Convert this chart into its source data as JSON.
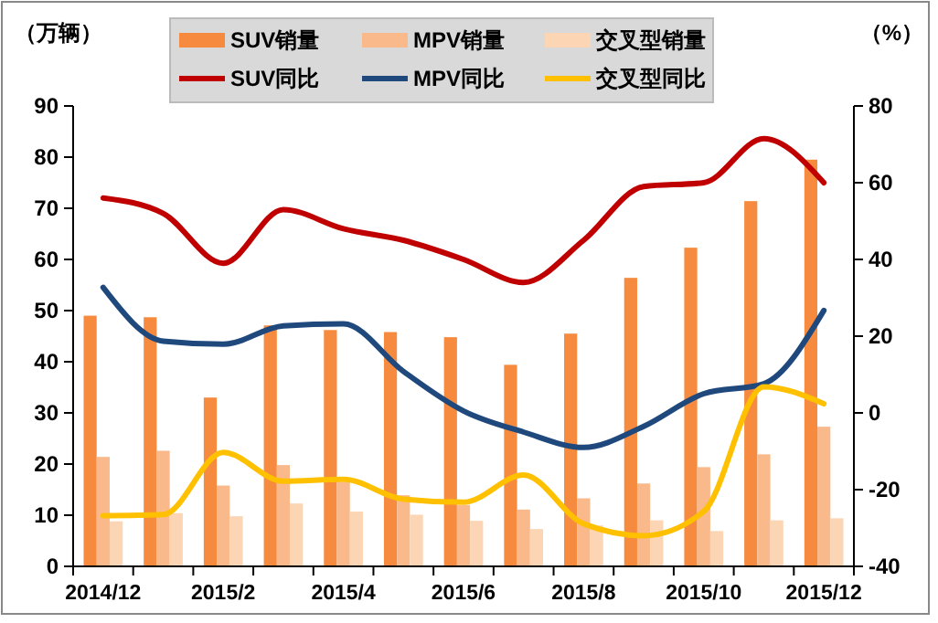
{
  "chart_data": {
    "type": "bar",
    "ylabel": "（万辆）",
    "y2label": "（%）",
    "categories": [
      "2014/12",
      null,
      "2015/2",
      null,
      "2015/4",
      null,
      "2015/6",
      null,
      "2015/8",
      null,
      "2015/10",
      null,
      "2015/12"
    ],
    "series": [
      {
        "name": "SUV销量",
        "color": "#f68b3f",
        "values": [
          49,
          48.7,
          33,
          47.1,
          46.2,
          45.8,
          44.8,
          39.4,
          45.5,
          56.4,
          62.3,
          71.4,
          79.5
        ]
      },
      {
        "name": "MPV销量",
        "color": "#f9b98a",
        "values": [
          21.4,
          22.6,
          15.8,
          19.8,
          16.5,
          13.9,
          12,
          11.1,
          13.3,
          16.2,
          19.4,
          21.9,
          27.3
        ]
      },
      {
        "name": "交叉型销量",
        "color": "#fcd5b5",
        "values": [
          8.8,
          10.4,
          9.8,
          12.3,
          10.7,
          10.1,
          8.9,
          7.3,
          8,
          9,
          6.9,
          9,
          9.4
        ]
      },
      {
        "name": "SUV同比",
        "type": "line",
        "axis": "y2",
        "color": "#c00000",
        "values": [
          56,
          52,
          39,
          53,
          48,
          45,
          40,
          34,
          45,
          59,
          60,
          71.5,
          60
        ]
      },
      {
        "name": "MPV同比",
        "type": "line",
        "axis": "y2",
        "color": "#1f497d",
        "values": [
          32.7,
          18.7,
          17.9,
          22.7,
          23.2,
          10.8,
          0.5,
          -5,
          -9,
          -3.5,
          5,
          7.6,
          26.7
        ]
      },
      {
        "name": "交叉型同比",
        "type": "line",
        "axis": "y2",
        "color": "#ffc000",
        "values": [
          -26.8,
          -26.5,
          -10.3,
          -17.8,
          -17.3,
          -22.5,
          -23.3,
          -16.2,
          -28.9,
          -32,
          -25.7,
          6.8,
          2.4
        ]
      }
    ],
    "ylim": [
      0,
      90
    ],
    "yticks": [
      0,
      10,
      20,
      30,
      40,
      50,
      60,
      70,
      80,
      90
    ],
    "y2lim": [
      -40,
      80
    ],
    "y2ticks": [
      -40,
      -20,
      0,
      20,
      40,
      60,
      80
    ],
    "grid": false,
    "legend": "top",
    "line_style": "solid",
    "marker": "none"
  }
}
